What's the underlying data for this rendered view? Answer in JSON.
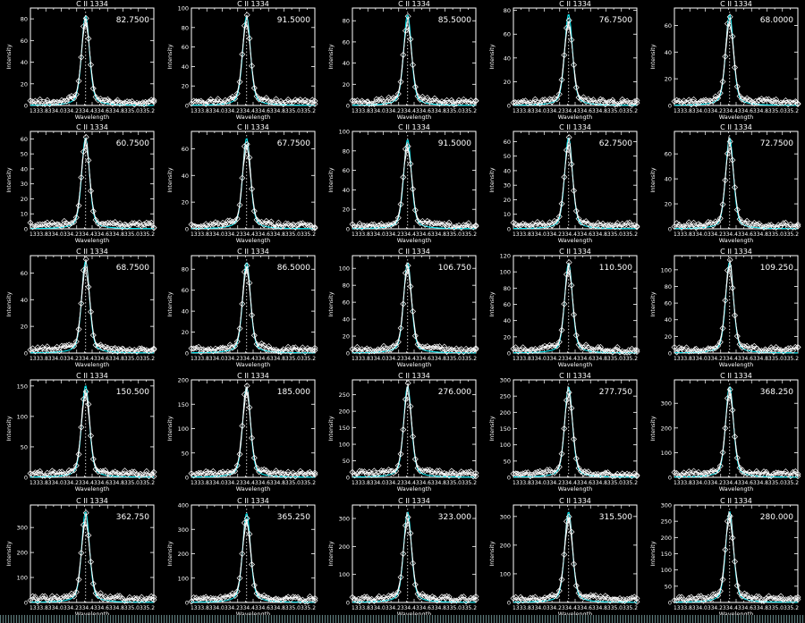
{
  "panel_title": "C II 1334",
  "xlabel": "Wavelength",
  "ylabel": "Intensity",
  "xtick_text": "1333.8334.0334.2334.4334.6334.8335.0335.2",
  "colors": {
    "background": "#000000",
    "axes": "#ffffff",
    "data": "#ffffff",
    "fit": "#00e5ee",
    "center_line": "#ffffff"
  },
  "marker": "diamond",
  "chart_data": [
    {
      "type": "line",
      "title": "C II 1334",
      "peak_label": "82.7500",
      "yticks": [
        0,
        20,
        40,
        60,
        80
      ],
      "ylim": [
        0,
        90
      ],
      "peak": 82.75
    },
    {
      "type": "line",
      "title": "C II 1334",
      "peak_label": "91.5000",
      "yticks": [
        0,
        20,
        40,
        60,
        80,
        100
      ],
      "ylim": [
        0,
        100
      ],
      "peak": 91.5
    },
    {
      "type": "line",
      "title": "C II 1334",
      "peak_label": "85.5000",
      "yticks": [
        0,
        20,
        40,
        60,
        80
      ],
      "ylim": [
        0,
        92
      ],
      "peak": 85.5
    },
    {
      "type": "line",
      "title": "C II 1334",
      "peak_label": "76.7500",
      "yticks": [
        0,
        20,
        40,
        60,
        80
      ],
      "ylim": [
        0,
        82
      ],
      "peak": 76.75
    },
    {
      "type": "line",
      "title": "C II 1334",
      "peak_label": "68.0000",
      "yticks": [
        0,
        20,
        40,
        60
      ],
      "ylim": [
        0,
        73
      ],
      "peak": 68.0
    },
    {
      "type": "line",
      "title": "C II 1334",
      "peak_label": "60.7500",
      "yticks": [
        0,
        10,
        20,
        30,
        40,
        50,
        60
      ],
      "ylim": [
        0,
        65
      ],
      "peak": 60.75
    },
    {
      "type": "line",
      "title": "C II 1334",
      "peak_label": "67.7500",
      "yticks": [
        0,
        20,
        40,
        60
      ],
      "ylim": [
        0,
        73
      ],
      "peak": 67.75
    },
    {
      "type": "line",
      "title": "C II 1334",
      "peak_label": "91.5000",
      "yticks": [
        0,
        20,
        40,
        60,
        80,
        100
      ],
      "ylim": [
        0,
        100
      ],
      "peak": 91.5
    },
    {
      "type": "line",
      "title": "C II 1334",
      "peak_label": "62.7500",
      "yticks": [
        0,
        10,
        20,
        30,
        40,
        50,
        60
      ],
      "ylim": [
        0,
        67
      ],
      "peak": 62.75
    },
    {
      "type": "line",
      "title": "C II 1334",
      "peak_label": "72.7500",
      "yticks": [
        0,
        20,
        40,
        60
      ],
      "ylim": [
        0,
        78
      ],
      "peak": 72.75
    },
    {
      "type": "line",
      "title": "C II 1334",
      "peak_label": "68.7500",
      "yticks": [
        0,
        20,
        40,
        60
      ],
      "ylim": [
        0,
        73
      ],
      "peak": 68.75
    },
    {
      "type": "line",
      "title": "C II 1334",
      "peak_label": "86.5000",
      "yticks": [
        0,
        20,
        40,
        60,
        80
      ],
      "ylim": [
        0,
        93
      ],
      "peak": 86.5
    },
    {
      "type": "line",
      "title": "C II 1334",
      "peak_label": "106.750",
      "yticks": [
        0,
        20,
        40,
        60,
        80,
        100
      ],
      "ylim": [
        0,
        115
      ],
      "peak": 106.75
    },
    {
      "type": "line",
      "title": "C II 1334",
      "peak_label": "110.500",
      "yticks": [
        0,
        20,
        40,
        60,
        80,
        100,
        120
      ],
      "ylim": [
        0,
        120
      ],
      "peak": 110.5
    },
    {
      "type": "line",
      "title": "C II 1334",
      "peak_label": "109.250",
      "yticks": [
        0,
        20,
        40,
        60,
        80,
        100
      ],
      "ylim": [
        0,
        117
      ],
      "peak": 109.25
    },
    {
      "type": "line",
      "title": "C II 1334",
      "peak_label": "150.500",
      "yticks": [
        0,
        50,
        100,
        150
      ],
      "ylim": [
        0,
        160
      ],
      "peak": 150.5
    },
    {
      "type": "line",
      "title": "C II 1334",
      "peak_label": "185.000",
      "yticks": [
        0,
        50,
        100,
        150,
        200
      ],
      "ylim": [
        0,
        200
      ],
      "peak": 185.0
    },
    {
      "type": "line",
      "title": "C II 1334",
      "peak_label": "276.000",
      "yticks": [
        0,
        50,
        100,
        150,
        200,
        250
      ],
      "ylim": [
        0,
        295
      ],
      "peak": 276.0
    },
    {
      "type": "line",
      "title": "C II 1334",
      "peak_label": "277.750",
      "yticks": [
        0,
        50,
        100,
        150,
        200,
        250,
        300
      ],
      "ylim": [
        0,
        300
      ],
      "peak": 277.75
    },
    {
      "type": "line",
      "title": "C II 1334",
      "peak_label": "368.250",
      "yticks": [
        0,
        100,
        200,
        300
      ],
      "ylim": [
        0,
        395
      ],
      "peak": 368.25
    },
    {
      "type": "line",
      "title": "C II 1334",
      "peak_label": "362.750",
      "yticks": [
        0,
        100,
        200,
        300
      ],
      "ylim": [
        0,
        390
      ],
      "peak": 362.75
    },
    {
      "type": "line",
      "title": "C II 1334",
      "peak_label": "365.250",
      "yticks": [
        0,
        100,
        200,
        300,
        400
      ],
      "ylim": [
        0,
        400
      ],
      "peak": 365.25
    },
    {
      "type": "line",
      "title": "C II 1334",
      "peak_label": "323.000",
      "yticks": [
        0,
        100,
        200,
        300
      ],
      "ylim": [
        0,
        348
      ],
      "peak": 323.0
    },
    {
      "type": "line",
      "title": "C II 1334",
      "peak_label": "315.500",
      "yticks": [
        0,
        100,
        200,
        300
      ],
      "ylim": [
        0,
        340
      ],
      "peak": 315.5
    },
    {
      "type": "line",
      "title": "C II 1334",
      "peak_label": "280.000",
      "yticks": [
        0,
        50,
        100,
        150,
        200,
        250,
        300
      ],
      "ylim": [
        0,
        300
      ],
      "peak": 280.0
    }
  ]
}
